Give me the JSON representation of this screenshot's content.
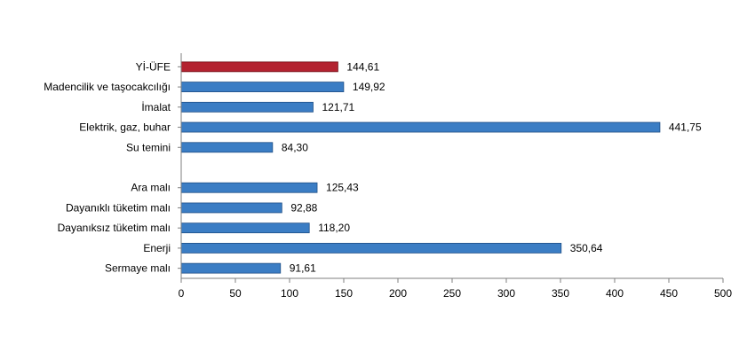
{
  "chart_data": {
    "type": "bar",
    "orientation": "horizontal",
    "categories": [
      "Yİ-ÜFE",
      "Madencilik ve taşocakcılığı",
      "İmalat",
      "Elektrik, gaz, buhar",
      "Su temini",
      "",
      "Ara malı",
      "Dayanıklı tüketim malı",
      "Dayanıksız tüketim malı",
      "Enerji",
      "Sermaye malı"
    ],
    "values": [
      144.61,
      149.92,
      121.71,
      441.75,
      84.3,
      null,
      125.43,
      92.88,
      118.2,
      350.64,
      91.61
    ],
    "value_labels": [
      "144,61",
      "149,92",
      "121,71",
      "441,75",
      "84,30",
      "",
      "125,43",
      "92,88",
      "118,20",
      "350,64",
      "91,61"
    ],
    "highlight_index": 0,
    "colors": {
      "bar": "#3b7dc4",
      "highlight": "#b32230",
      "bar_edge": "#1f4f86",
      "highlight_edge": "#6e1018",
      "axis": "#7f7f7f"
    },
    "xlim": [
      0,
      500
    ],
    "xticks": [
      0,
      50,
      100,
      150,
      200,
      250,
      300,
      350,
      400,
      450,
      500
    ],
    "title": "",
    "xlabel": "",
    "ylabel": "",
    "grid": false,
    "legend": "none"
  }
}
